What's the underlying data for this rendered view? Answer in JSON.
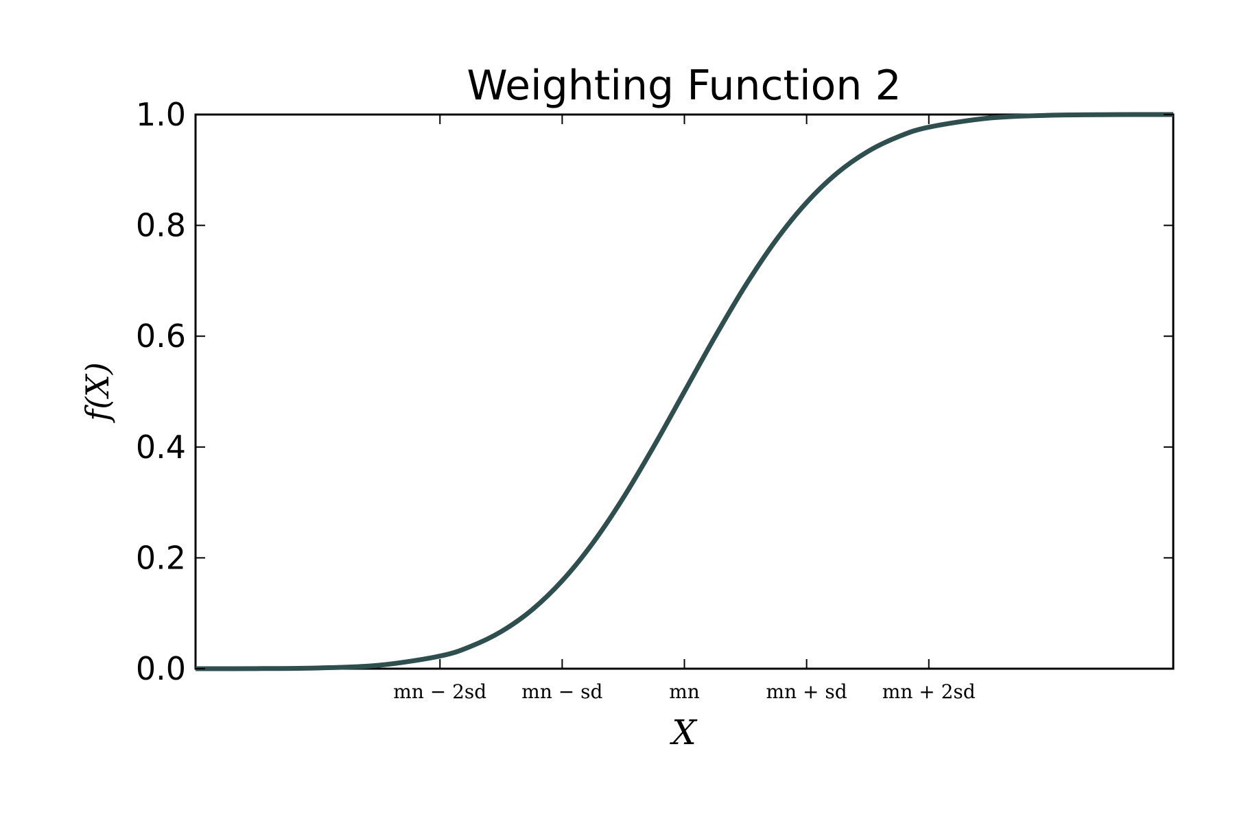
{
  "chart_data": {
    "type": "line",
    "title": "Weighting Function 2",
    "xlabel": "X",
    "ylabel": "f(X)",
    "xlim": [
      -4,
      4
    ],
    "ylim": [
      0.0,
      1.0
    ],
    "grid": false,
    "x_unit_note": "mn",
    "x_ticks": [
      {
        "value": -2,
        "label": "mn − 2sd"
      },
      {
        "value": -1,
        "label": "mn − sd"
      },
      {
        "value": 0,
        "label": "mn"
      },
      {
        "value": 1,
        "label": "mn + sd"
      },
      {
        "value": 2,
        "label": "mn + 2sd"
      }
    ],
    "y_ticks": [
      {
        "value": 0.0,
        "label": "0.0"
      },
      {
        "value": 0.2,
        "label": "0.2"
      },
      {
        "value": 0.4,
        "label": "0.4"
      },
      {
        "value": 0.6,
        "label": "0.6"
      },
      {
        "value": 0.8,
        "label": "0.8"
      },
      {
        "value": 1.0,
        "label": "1.0"
      }
    ],
    "series": [
      {
        "color": "#2f4f4f",
        "x": [
          -4.0,
          -3.5,
          -3.0,
          -2.5,
          -2.0,
          -1.75,
          -1.5,
          -1.25,
          -1.0,
          -0.75,
          -0.5,
          -0.25,
          0.0,
          0.25,
          0.5,
          0.75,
          1.0,
          1.25,
          1.5,
          1.75,
          2.0,
          2.5,
          3.0,
          3.5,
          4.0
        ],
        "y": [
          0.0,
          0.0002,
          0.0013,
          0.0062,
          0.0228,
          0.0401,
          0.0668,
          0.1056,
          0.1587,
          0.2266,
          0.3085,
          0.4013,
          0.5,
          0.5987,
          0.6915,
          0.7734,
          0.8413,
          0.8944,
          0.9332,
          0.9599,
          0.9772,
          0.9938,
          0.9987,
          0.9998,
          1.0
        ]
      }
    ]
  }
}
